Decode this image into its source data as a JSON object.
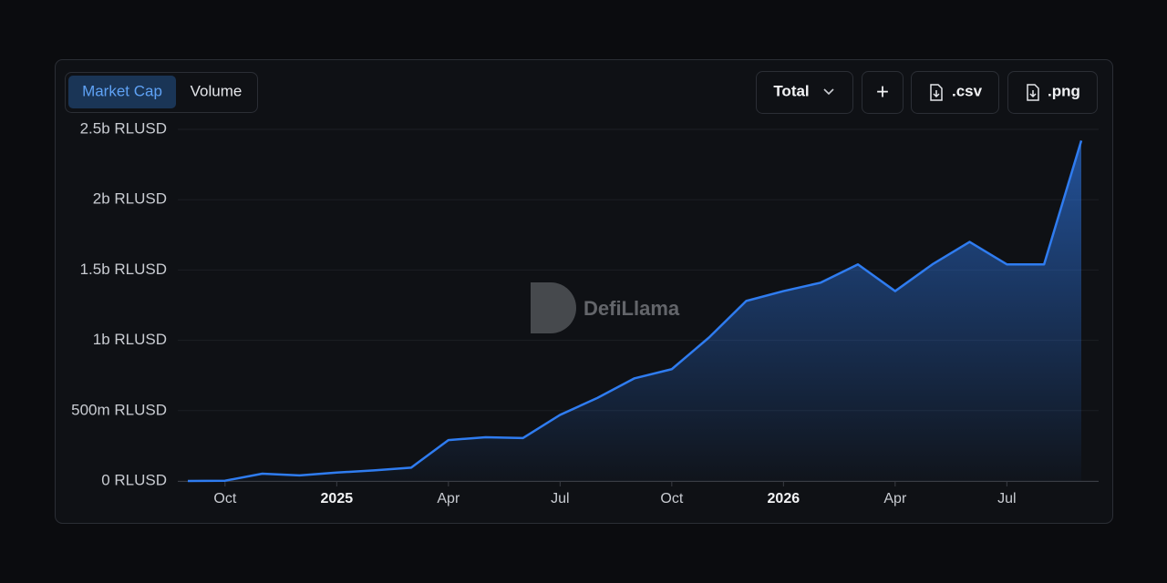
{
  "controls": {
    "tabs": [
      "Market Cap",
      "Volume"
    ],
    "dropdown": "Total",
    "plus": "+",
    "downloads": [
      ".csv",
      ".png"
    ]
  },
  "watermark": "DefiLlama",
  "chart_data": {
    "type": "area",
    "x": [
      "2024-09",
      "2024-10",
      "2024-11",
      "2024-12",
      "2025-01",
      "2025-02",
      "2025-03",
      "2025-04",
      "2025-05",
      "2025-06",
      "2025-07",
      "2025-08",
      "2025-09",
      "2025-10",
      "2025-11",
      "2025-12",
      "2026-01",
      "2026-02",
      "2026-03",
      "2026-04",
      "2026-05",
      "2026-06",
      "2026-07",
      "2026-08",
      "2026-09"
    ],
    "series": [
      {
        "name": "Market Cap",
        "color": "#2f7cf0",
        "values": [
          0,
          2000000,
          52000000,
          40000000,
          60000000,
          75000000,
          95000000,
          291000000,
          311000000,
          305000000,
          470000000,
          590000000,
          730000000,
          795000000,
          1020000000,
          1280000000,
          1350000000,
          1410000000,
          1540000000,
          1350000000,
          1540000000,
          1700000000,
          1540000000,
          1540000000,
          2420000000
        ]
      }
    ],
    "xlim": [
      "2024-09",
      "2026-09"
    ],
    "xticks": [
      {
        "value": "2024-10",
        "label": "Oct"
      },
      {
        "value": "2025-01",
        "label": "2025"
      },
      {
        "value": "2025-04",
        "label": "Apr"
      },
      {
        "value": "2025-07",
        "label": "Jul"
      },
      {
        "value": "2025-10",
        "label": "Oct"
      },
      {
        "value": "2026-01",
        "label": "2026"
      },
      {
        "value": "2026-04",
        "label": "Apr"
      },
      {
        "value": "2026-07",
        "label": "Jul"
      }
    ],
    "ylim": [
      0,
      2500000000
    ],
    "yticks": [
      {
        "value": 0,
        "label": "0 RLUSD"
      },
      {
        "value": 500000000,
        "label": "500m RLUSD"
      },
      {
        "value": 1000000000,
        "label": "1b RLUSD"
      },
      {
        "value": 1500000000,
        "label": "1.5b RLUSD"
      },
      {
        "value": 2000000000,
        "label": "2b RLUSD"
      },
      {
        "value": 2500000000,
        "label": "2.5b RLUSD"
      }
    ],
    "grid": true
  }
}
